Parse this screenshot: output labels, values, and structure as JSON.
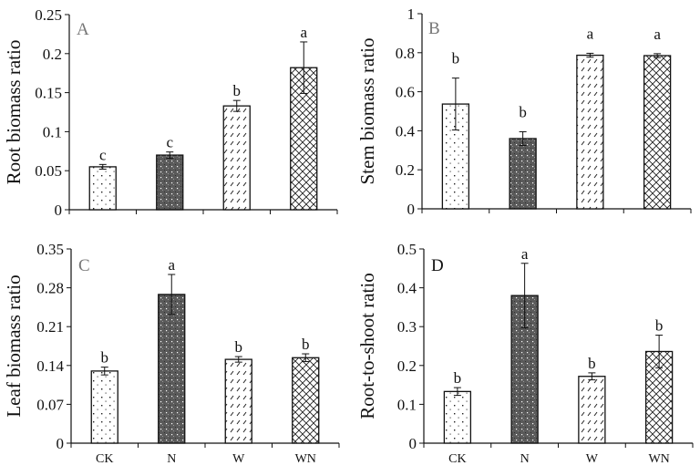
{
  "chart_data": [
    {
      "type": "bar",
      "panel": "A",
      "ylabel": "Root biomass ratio",
      "categories": [
        "CK",
        "N",
        "W",
        "WN"
      ],
      "values": [
        0.055,
        0.07,
        0.133,
        0.182
      ],
      "errors": [
        0.003,
        0.004,
        0.007,
        0.033
      ],
      "significance": [
        "c",
        "c",
        "b",
        "a"
      ],
      "ylim": [
        0,
        0.25
      ],
      "yticks": [
        0,
        0.05,
        0.1,
        0.15,
        0.2,
        0.25
      ],
      "ytick_labels": [
        "0",
        "0.05",
        "0.1",
        "0.15",
        "0.2",
        "0.25"
      ],
      "show_category_labels": false,
      "letter_color": "#777777"
    },
    {
      "type": "bar",
      "panel": "B",
      "ylabel": "Stem biomass ratio",
      "categories": [
        "CK",
        "N",
        "W",
        "WN"
      ],
      "values": [
        0.537,
        0.36,
        0.787,
        0.785
      ],
      "errors": [
        0.133,
        0.035,
        0.01,
        0.01
      ],
      "significance": [
        "b",
        "b",
        "a",
        "a"
      ],
      "ylim": [
        0,
        1
      ],
      "yticks": [
        0,
        0.2,
        0.4,
        0.6,
        0.8,
        1
      ],
      "ytick_labels": [
        "0",
        "0.2",
        "0.4",
        "0.6",
        "0.8",
        "1"
      ],
      "show_category_labels": false,
      "letter_color": "#777777"
    },
    {
      "type": "bar",
      "panel": "C",
      "ylabel": "Leaf biomass ratio",
      "categories": [
        "CK",
        "N",
        "W",
        "WN"
      ],
      "values": [
        0.13,
        0.268,
        0.151,
        0.154
      ],
      "errors": [
        0.007,
        0.036,
        0.005,
        0.007
      ],
      "significance": [
        "b",
        "a",
        "b",
        "b"
      ],
      "ylim": [
        0,
        0.35
      ],
      "yticks": [
        0,
        0.07,
        0.14,
        0.21,
        0.28,
        0.35
      ],
      "ytick_labels": [
        "0",
        "0.07",
        "0.14",
        "0.21",
        "0.28",
        "0.35"
      ],
      "show_category_labels": true,
      "letter_color": "#777777"
    },
    {
      "type": "bar",
      "panel": "D",
      "ylabel": "Root-to-shoot ratio",
      "categories": [
        "CK",
        "N",
        "W",
        "WN"
      ],
      "values": [
        0.133,
        0.38,
        0.172,
        0.236
      ],
      "errors": [
        0.01,
        0.083,
        0.009,
        0.042
      ],
      "significance": [
        "b",
        "a",
        "b",
        "b"
      ],
      "ylim": [
        0,
        0.5
      ],
      "yticks": [
        0,
        0.1,
        0.2,
        0.3,
        0.4,
        0.5
      ],
      "ytick_labels": [
        "0",
        "0.1",
        "0.2",
        "0.3",
        "0.4",
        "0.5"
      ],
      "show_category_labels": true,
      "letter_color": "#111111"
    }
  ],
  "bar_patterns": [
    "sparse-dots",
    "dense-dark-dots",
    "diagonal-dashes",
    "crosshatch"
  ]
}
